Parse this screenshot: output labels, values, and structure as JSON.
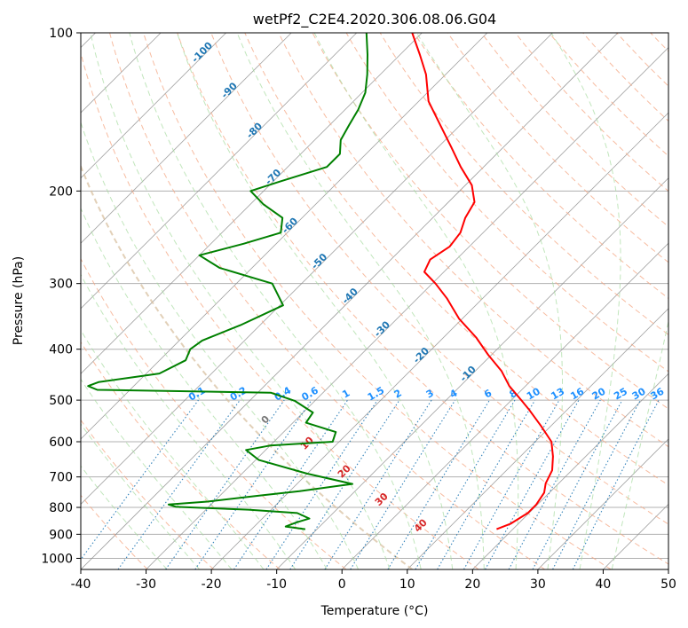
{
  "chart_data": {
    "type": "line",
    "title": "wetPf2_C2E4.2020.306.08.06.G04",
    "xlabel": "Temperature (°C)",
    "ylabel": "Pressure (hPa)",
    "xlim": [
      -40,
      50
    ],
    "ylim": [
      1050,
      100
    ],
    "y_scale": "log",
    "grid": true,
    "x_ticks": [
      "-40",
      "-30",
      "-20",
      "-10",
      "0",
      "10",
      "20",
      "30",
      "40",
      "50"
    ],
    "y_ticks": [
      "100",
      "200",
      "300",
      "400",
      "500",
      "600",
      "700",
      "800",
      "900",
      "1000"
    ],
    "skew": 45,
    "colors": {
      "temperature": "#ff0000",
      "dewpoint": "#008000",
      "dry_adiabat": "#f4a582",
      "moist_adiabat": "#a6dba0",
      "mixing_ratio": "#1f77b4",
      "isotherm": "#888888",
      "dry_adiabat_label": "#1f77b4",
      "moist_label": "#d62728",
      "mixing_label": "#1e90ff"
    },
    "series": [
      {
        "name": "temperature",
        "p": [
          880,
          860,
          820,
          790,
          750,
          720,
          680,
          640,
          600,
          560,
          520,
          500,
          470,
          440,
          410,
          380,
          350,
          320,
          300,
          285,
          270,
          255,
          240,
          225,
          210,
          195,
          180,
          165,
          150,
          135,
          120,
          110,
          100
        ],
        "t": [
          17.5,
          18.8,
          19.8,
          19.8,
          19.2,
          18.0,
          17.0,
          15.0,
          12.5,
          8.5,
          4.0,
          1.5,
          -2.5,
          -6.0,
          -10.5,
          -15.0,
          -20.5,
          -25.5,
          -29.5,
          -33.0,
          -34.0,
          -33.0,
          -33.5,
          -35.0,
          -36.0,
          -39.0,
          -43.5,
          -48.0,
          -53.0,
          -58.5,
          -63.0,
          -67.0,
          -71.5
        ]
      },
      {
        "name": "dewpoint",
        "p": [
          880,
          870,
          855,
          840,
          820,
          808,
          798,
          790,
          780,
          760,
          745,
          722,
          690,
          650,
          622,
          610,
          600,
          575,
          552,
          528,
          502,
          484,
          478,
          470,
          462,
          445,
          420,
          400,
          385,
          360,
          330,
          300,
          280,
          265,
          252,
          240,
          225,
          212,
          200,
          192,
          180,
          170,
          160,
          150,
          140,
          130,
          120,
          110,
          100
        ],
        "t": [
          -11.8,
          -15.2,
          -14.2,
          -12.8,
          -15.5,
          -23.5,
          -35.0,
          -36.5,
          -31.0,
          -24.0,
          -18.5,
          -11.5,
          -20.0,
          -29.5,
          -33.0,
          -30.0,
          -21.0,
          -22.0,
          -28.0,
          -28.5,
          -33.0,
          -38.0,
          -65.0,
          -67.0,
          -66.0,
          -58.0,
          -56.0,
          -57.0,
          -56.5,
          -53.0,
          -49.5,
          -54.5,
          -65.0,
          -70.0,
          -65.0,
          -61.0,
          -63.0,
          -68.0,
          -72.0,
          -69.0,
          -64.0,
          -64.0,
          -66.0,
          -67.0,
          -68.0,
          -69.5,
          -72.0,
          -75.0,
          -78.5
        ]
      }
    ],
    "dry_adiabat_labels": [
      "-100",
      "-90",
      "-80",
      "-70",
      "-60",
      "-50",
      "-40",
      "-30",
      "-20",
      "-10"
    ],
    "moist_adiabat_labels": [
      "0",
      "10",
      "20",
      "30",
      "40"
    ],
    "mixing_ratio_labels": [
      "0.1",
      "0.2",
      "0.4",
      "0.6",
      "1",
      "1.5",
      "2",
      "3",
      "4",
      "6",
      "8",
      "10",
      "13",
      "16",
      "20",
      "25",
      "30",
      "36"
    ]
  }
}
